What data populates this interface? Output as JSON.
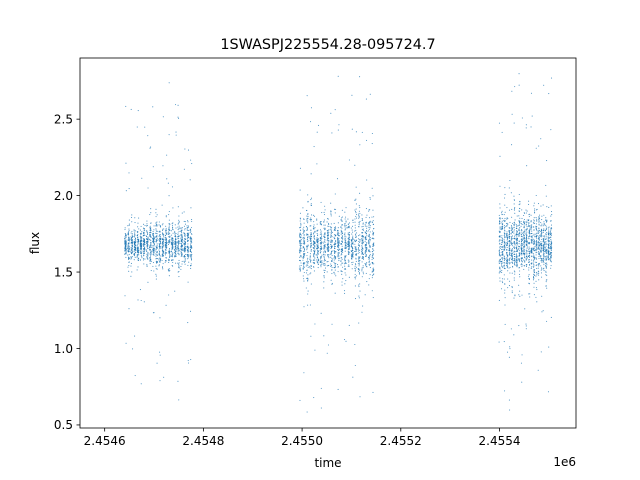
{
  "chart_data": {
    "type": "scatter",
    "title": "1SWASPJ225554.28-095724.7",
    "xlabel": "time",
    "ylabel": "flux",
    "x_offset_label": "1e6",
    "xlim": [
      2.45455,
      2.455555
    ],
    "ylim": [
      0.48,
      2.9
    ],
    "x_ticks": [
      2.4546,
      2.4548,
      2.455,
      2.4552,
      2.4554
    ],
    "x_tick_labels": [
      "2.4546",
      "2.4548",
      "2.4550",
      "2.4552",
      "2.4554"
    ],
    "y_ticks": [
      0.5,
      1.0,
      1.5,
      2.0,
      2.5
    ],
    "y_tick_labels": [
      "0.5",
      "1.0",
      "1.5",
      "2.0",
      "2.5"
    ],
    "grid": false,
    "legend": "none",
    "point_color": "#1f77b4",
    "series": [
      {
        "observing_seasons": [
          {
            "time_range": [
              2.454639,
              2.454778
            ],
            "flux_median": 1.68,
            "flux_core_range": [
              1.45,
              2.0
            ],
            "flux_extreme_range": [
              0.65,
              2.75
            ]
          },
          {
            "time_range": [
              2.454993,
              2.455147
            ],
            "flux_median": 1.68,
            "flux_core_range": [
              1.3,
              2.1
            ],
            "flux_extreme_range": [
              0.58,
              2.78
            ]
          },
          {
            "time_range": [
              2.455398,
              2.455507
            ],
            "flux_median": 1.68,
            "flux_core_range": [
              1.3,
              2.1
            ],
            "flux_extreme_range": [
              0.58,
              2.8
            ]
          }
        ]
      }
    ]
  }
}
